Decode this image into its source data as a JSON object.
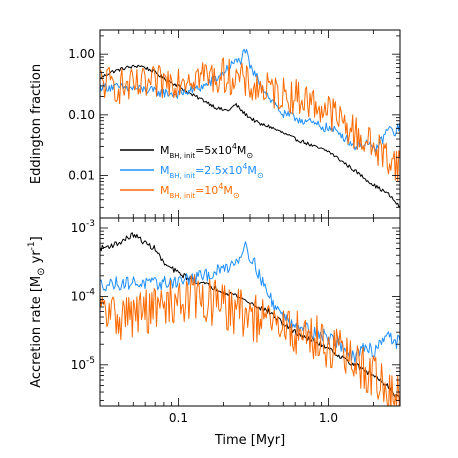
{
  "chart_data": [
    {
      "type": "line",
      "panel": "top",
      "ylabel": "Eddington fraction",
      "xscale": "log",
      "yscale": "log",
      "xlim": [
        0.03,
        3.0
      ],
      "ylim": [
        0.002,
        2.5
      ],
      "yticks": [
        {
          "value": 0.01,
          "label": "0.01"
        },
        {
          "value": 0.1,
          "label": "0.10"
        },
        {
          "value": 1.0,
          "label": "1.00"
        }
      ],
      "legend": {
        "placement": "center-left",
        "entries": [
          {
            "text": "M_BH,init=5x10^4M_⊙",
            "parts": [
              "M",
              "BH, init",
              "=5x10",
              "4",
              "M",
              "⊙"
            ],
            "color": "#000000"
          },
          {
            "text": "M_BH,init=2.5x10^4M_⊙",
            "parts": [
              "M",
              "BH, init",
              "=2.5x10",
              "4",
              "M",
              "⊙"
            ],
            "color": "#1e90ff"
          },
          {
            "text": "M_BH,init=10^4M_⊙",
            "parts": [
              "M",
              "BH, init",
              "=10",
              "4",
              "M",
              "⊙"
            ],
            "color": "#ff6a00"
          }
        ]
      },
      "series": [
        {
          "name": "M_BH,init=5x10^4M_⊙",
          "color": "#000000",
          "noise": 0.03,
          "points": [
            [
              0.03,
              0.4
            ],
            [
              0.035,
              0.5
            ],
            [
              0.04,
              0.55
            ],
            [
              0.045,
              0.6
            ],
            [
              0.05,
              0.62
            ],
            [
              0.055,
              0.65
            ],
            [
              0.06,
              0.6
            ],
            [
              0.07,
              0.5
            ],
            [
              0.08,
              0.4
            ],
            [
              0.1,
              0.3
            ],
            [
              0.12,
              0.22
            ],
            [
              0.15,
              0.17
            ],
            [
              0.18,
              0.13
            ],
            [
              0.2,
              0.12
            ],
            [
              0.22,
              0.12
            ],
            [
              0.24,
              0.15
            ],
            [
              0.27,
              0.11
            ],
            [
              0.3,
              0.09
            ],
            [
              0.35,
              0.07
            ],
            [
              0.4,
              0.065
            ],
            [
              0.5,
              0.05
            ],
            [
              0.6,
              0.04
            ],
            [
              0.7,
              0.035
            ],
            [
              0.8,
              0.03
            ],
            [
              1.0,
              0.025
            ],
            [
              1.2,
              0.018
            ],
            [
              1.5,
              0.012
            ],
            [
              2.0,
              0.007
            ],
            [
              2.5,
              0.005
            ],
            [
              3.0,
              0.003
            ]
          ]
        },
        {
          "name": "M_BH,init=2.5x10^4M_⊙",
          "color": "#1e90ff",
          "noise": 0.08,
          "points": [
            [
              0.03,
              0.3
            ],
            [
              0.04,
              0.28
            ],
            [
              0.05,
              0.27
            ],
            [
              0.06,
              0.26
            ],
            [
              0.07,
              0.24
            ],
            [
              0.08,
              0.23
            ],
            [
              0.1,
              0.22
            ],
            [
              0.12,
              0.25
            ],
            [
              0.15,
              0.3
            ],
            [
              0.18,
              0.4
            ],
            [
              0.2,
              0.5
            ],
            [
              0.23,
              0.7
            ],
            [
              0.26,
              0.8
            ],
            [
              0.28,
              1.2
            ],
            [
              0.3,
              0.6
            ],
            [
              0.35,
              0.35
            ],
            [
              0.4,
              0.2
            ],
            [
              0.5,
              0.1
            ],
            [
              0.6,
              0.09
            ],
            [
              0.7,
              0.08
            ],
            [
              0.8,
              0.07
            ],
            [
              1.0,
              0.06
            ],
            [
              1.2,
              0.05
            ],
            [
              1.5,
              0.03
            ],
            [
              1.8,
              0.035
            ],
            [
              2.0,
              0.025
            ],
            [
              2.3,
              0.04
            ],
            [
              2.5,
              0.06
            ],
            [
              2.8,
              0.05
            ],
            [
              3.0,
              0.07
            ]
          ]
        },
        {
          "name": "M_BH,init=10^4M_⊙",
          "color": "#ff6a00",
          "noise": 0.3,
          "points": [
            [
              0.03,
              0.35
            ],
            [
              0.04,
              0.3
            ],
            [
              0.05,
              0.28
            ],
            [
              0.06,
              0.3
            ],
            [
              0.07,
              0.32
            ],
            [
              0.08,
              0.35
            ],
            [
              0.1,
              0.4
            ],
            [
              0.12,
              0.45
            ],
            [
              0.15,
              0.45
            ],
            [
              0.18,
              0.4
            ],
            [
              0.2,
              0.45
            ],
            [
              0.25,
              0.4
            ],
            [
              0.3,
              0.3
            ],
            [
              0.4,
              0.25
            ],
            [
              0.5,
              0.22
            ],
            [
              0.6,
              0.2
            ],
            [
              0.7,
              0.18
            ],
            [
              0.8,
              0.15
            ],
            [
              1.0,
              0.12
            ],
            [
              1.2,
              0.08
            ],
            [
              1.5,
              0.05
            ],
            [
              2.0,
              0.03
            ],
            [
              2.5,
              0.02
            ],
            [
              3.0,
              0.015
            ]
          ]
        }
      ]
    },
    {
      "type": "line",
      "panel": "bottom",
      "xlabel": "Time [Myr]",
      "ylabel_parts": [
        "Accretion rate [M",
        "⊙",
        " yr",
        "-1",
        "]"
      ],
      "xscale": "log",
      "yscale": "log",
      "xlim": [
        0.03,
        3.0
      ],
      "ylim": [
        2.5e-06,
        0.0014
      ],
      "xticks": [
        {
          "value": 0.1,
          "label": "0.1"
        },
        {
          "value": 1.0,
          "label": "1.0"
        }
      ],
      "yticks": [
        {
          "value": 1e-05,
          "base": "10",
          "exp": "-5"
        },
        {
          "value": 0.0001,
          "base": "10",
          "exp": "-4"
        },
        {
          "value": 0.001,
          "base": "10",
          "exp": "-3"
        }
      ],
      "series": [
        {
          "name": "M_BH,init=5x10^4M_⊙",
          "color": "#000000",
          "noise": 0.04,
          "points": [
            [
              0.03,
              0.0005
            ],
            [
              0.035,
              0.00055
            ],
            [
              0.04,
              0.0006
            ],
            [
              0.045,
              0.0007
            ],
            [
              0.05,
              0.0008
            ],
            [
              0.055,
              0.0007
            ],
            [
              0.06,
              0.0006
            ],
            [
              0.07,
              0.0005
            ],
            [
              0.08,
              0.0003
            ],
            [
              0.1,
              0.00022
            ],
            [
              0.12,
              0.00018
            ],
            [
              0.15,
              0.00015
            ],
            [
              0.2,
              0.00012
            ],
            [
              0.25,
              0.0001
            ],
            [
              0.3,
              8e-05
            ],
            [
              0.4,
              6e-05
            ],
            [
              0.5,
              4e-05
            ],
            [
              0.6,
              3e-05
            ],
            [
              0.8,
              2.2e-05
            ],
            [
              1.0,
              1.8e-05
            ],
            [
              1.2,
              1.3e-05
            ],
            [
              1.5,
              1e-05
            ],
            [
              2.0,
              7e-06
            ],
            [
              2.5,
              5e-06
            ],
            [
              3.0,
              3e-06
            ]
          ]
        },
        {
          "name": "M_BH,init=2.5x10^4M_⊙",
          "color": "#1e90ff",
          "noise": 0.1,
          "points": [
            [
              0.03,
              0.00015
            ],
            [
              0.04,
              0.000155
            ],
            [
              0.05,
              0.00016
            ],
            [
              0.07,
              0.00015
            ],
            [
              0.1,
              0.00017
            ],
            [
              0.12,
              0.00018
            ],
            [
              0.15,
              0.0002
            ],
            [
              0.2,
              0.00025
            ],
            [
              0.25,
              0.00035
            ],
            [
              0.28,
              0.0006
            ],
            [
              0.3,
              0.0004
            ],
            [
              0.35,
              0.0002
            ],
            [
              0.4,
              0.0001
            ],
            [
              0.5,
              5e-05
            ],
            [
              0.6,
              4e-05
            ],
            [
              0.8,
              3e-05
            ],
            [
              1.0,
              2.5e-05
            ],
            [
              1.2,
              2e-05
            ],
            [
              1.5,
              1.2e-05
            ],
            [
              1.8,
              2e-05
            ],
            [
              2.0,
              1.5e-05
            ],
            [
              2.3,
              2.5e-05
            ],
            [
              2.5,
              3e-05
            ],
            [
              2.8,
              2e-05
            ],
            [
              3.0,
              2.5e-05
            ]
          ]
        },
        {
          "name": "M_BH,init=10^4M_⊙",
          "color": "#ff6a00",
          "noise": 0.35,
          "points": [
            [
              0.03,
              6e-05
            ],
            [
              0.04,
              5e-05
            ],
            [
              0.05,
              5.5e-05
            ],
            [
              0.06,
              6e-05
            ],
            [
              0.08,
              7e-05
            ],
            [
              0.1,
              9e-05
            ],
            [
              0.12,
              0.0001
            ],
            [
              0.15,
              9e-05
            ],
            [
              0.2,
              7e-05
            ],
            [
              0.25,
              6e-05
            ],
            [
              0.3,
              5e-05
            ],
            [
              0.4,
              4e-05
            ],
            [
              0.5,
              3.5e-05
            ],
            [
              0.6,
              3e-05
            ],
            [
              0.8,
              2.5e-05
            ],
            [
              1.0,
              2e-05
            ],
            [
              1.2,
              1.5e-05
            ],
            [
              1.5,
              1e-05
            ],
            [
              2.0,
              7e-06
            ],
            [
              2.5,
              4e-06
            ],
            [
              3.0,
              3e-06
            ]
          ]
        }
      ]
    }
  ]
}
